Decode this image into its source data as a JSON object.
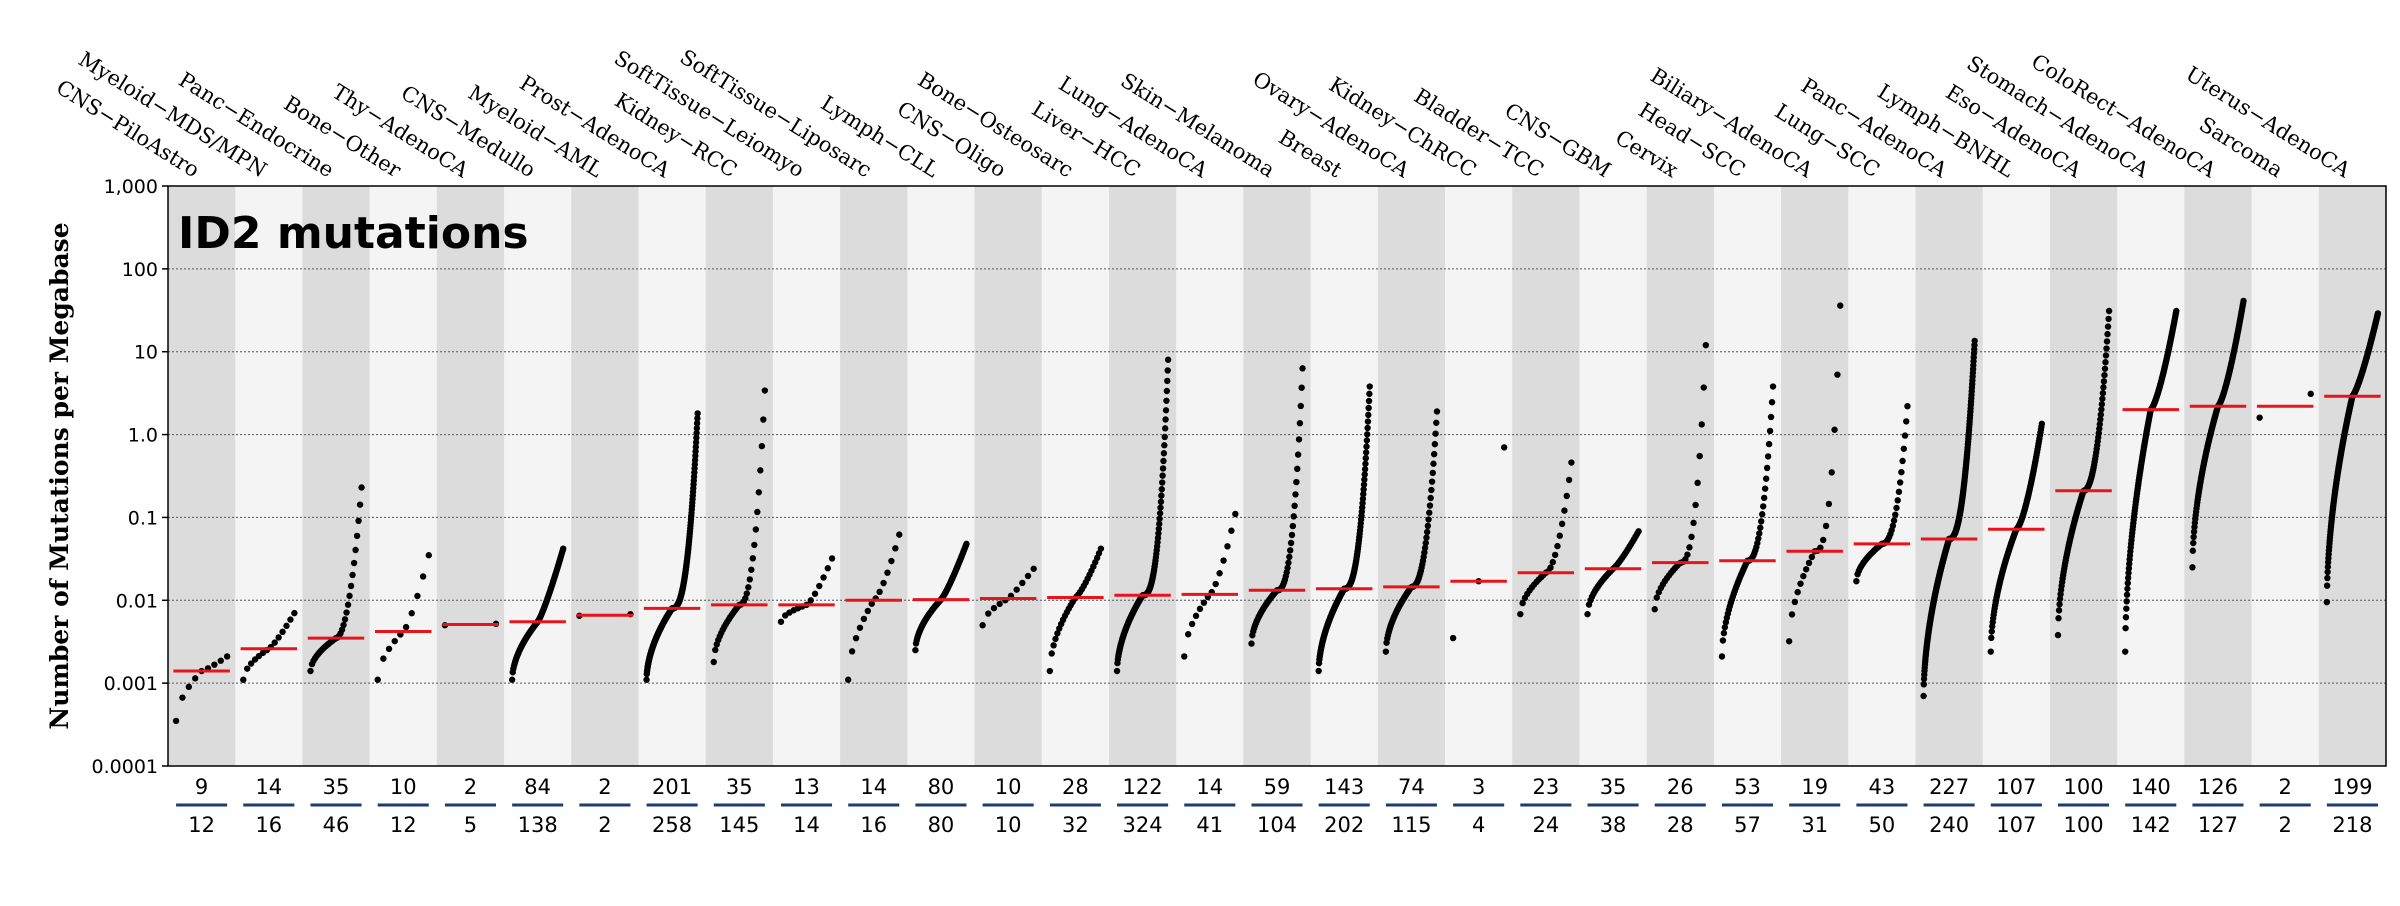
{
  "chart_data": {
    "type": "scatter",
    "title": "ID2 mutations",
    "ylabel": "Number of Mutations per Megabase",
    "yscale": "log",
    "ylim": [
      0.0001,
      1000
    ],
    "yticks": [
      {
        "value": 1000,
        "label": "1,000"
      },
      {
        "value": 100,
        "label": "100"
      },
      {
        "value": 10,
        "label": "10"
      },
      {
        "value": 1,
        "label": "1.0"
      },
      {
        "value": 0.1,
        "label": "0.1"
      },
      {
        "value": 0.01,
        "label": "0.01"
      },
      {
        "value": 0.001,
        "label": "0.001"
      },
      {
        "value": 0.0001,
        "label": "0.0001"
      }
    ],
    "colors": {
      "point": "#000000",
      "median": "#e8141c",
      "band_dark": "#dcdcdc",
      "band_light": "#f4f4f4",
      "count_line": "#1f3b73",
      "grid": "#555555"
    },
    "categories": [
      {
        "name": "CNS−PiloAstro",
        "mutated": 9,
        "total": 12,
        "median": 0.0014,
        "lo": 0.00035,
        "hi": 0.0021,
        "skew": 1.2
      },
      {
        "name": "Myeloid−MDS/MPN",
        "mutated": 14,
        "total": 16,
        "median": 0.0026,
        "lo": 0.0011,
        "hi": 0.007,
        "skew": 1.2
      },
      {
        "name": "Panc−Endocrine",
        "mutated": 35,
        "total": 46,
        "median": 0.0035,
        "lo": 0.0014,
        "hi": 0.23,
        "skew": 2.0
      },
      {
        "name": "Bone−Other",
        "mutated": 10,
        "total": 12,
        "median": 0.0042,
        "lo": 0.0011,
        "hi": 0.035,
        "skew": 1.3
      },
      {
        "name": "Thy−AdenoCA",
        "mutated": 2,
        "total": 5,
        "median": 0.0051,
        "lo": 0.005,
        "hi": 0.0052,
        "skew": 1.0
      },
      {
        "name": "CNS−Medullo",
        "mutated": 84,
        "total": 138,
        "median": 0.0055,
        "lo": 0.0011,
        "hi": 0.042,
        "skew": 1.2
      },
      {
        "name": "Myeloid−AML",
        "mutated": 2,
        "total": 2,
        "median": 0.0066,
        "lo": 0.0065,
        "hi": 0.0068,
        "skew": 1.0
      },
      {
        "name": "Prost−AdenoCA",
        "mutated": 201,
        "total": 258,
        "median": 0.008,
        "lo": 0.0011,
        "hi": 1.8,
        "skew": 2.6
      },
      {
        "name": "Kidney−RCC",
        "mutated": 35,
        "total": 145,
        "median": 0.0088,
        "lo": 0.0018,
        "hi": 3.4,
        "skew": 2.4
      },
      {
        "name": "SoftTissue−Leiomyo",
        "mutated": 13,
        "total": 14,
        "median": 0.0088,
        "lo": 0.0055,
        "hi": 0.032,
        "skew": 1.3
      },
      {
        "name": "SoftTissue−Liposarc",
        "mutated": 14,
        "total": 16,
        "median": 0.01,
        "lo": 0.0011,
        "hi": 0.062,
        "skew": 1.4
      },
      {
        "name": "Lymph−CLL",
        "mutated": 80,
        "total": 80,
        "median": 0.0102,
        "lo": 0.0025,
        "hi": 0.048,
        "skew": 1.2
      },
      {
        "name": "CNS−Oligo",
        "mutated": 10,
        "total": 10,
        "median": 0.0105,
        "lo": 0.005,
        "hi": 0.024,
        "skew": 1.1
      },
      {
        "name": "Bone−Osteosarc",
        "mutated": 28,
        "total": 32,
        "median": 0.0108,
        "lo": 0.0014,
        "hi": 0.042,
        "skew": 1.3
      },
      {
        "name": "Liver−HCC",
        "mutated": 122,
        "total": 324,
        "median": 0.0115,
        "lo": 0.0014,
        "hi": 8.0,
        "skew": 2.8
      },
      {
        "name": "Lung−AdenoCA",
        "mutated": 14,
        "total": 41,
        "median": 0.0118,
        "lo": 0.0021,
        "hi": 0.11,
        "skew": 1.4
      },
      {
        "name": "Skin−Melanoma",
        "mutated": 59,
        "total": 104,
        "median": 0.0132,
        "lo": 0.003,
        "hi": 6.3,
        "skew": 2.6
      },
      {
        "name": "Breast",
        "mutated": 143,
        "total": 202,
        "median": 0.0138,
        "lo": 0.0014,
        "hi": 3.8,
        "skew": 2.6
      },
      {
        "name": "Ovary−AdenoCA",
        "mutated": 74,
        "total": 115,
        "median": 0.0145,
        "lo": 0.0024,
        "hi": 1.9,
        "skew": 2.4
      },
      {
        "name": "Kidney−ChRCC",
        "mutated": 3,
        "total": 4,
        "median": 0.017,
        "lo": 0.0035,
        "hi": 0.7,
        "skew": 1.0
      },
      {
        "name": "Bladder−TCC",
        "mutated": 23,
        "total": 24,
        "median": 0.0215,
        "lo": 0.0068,
        "hi": 0.46,
        "skew": 1.8
      },
      {
        "name": "CNS−GBM",
        "mutated": 35,
        "total": 38,
        "median": 0.024,
        "lo": 0.0068,
        "hi": 0.068,
        "skew": 1.2
      },
      {
        "name": "Cervix",
        "mutated": 26,
        "total": 28,
        "median": 0.0285,
        "lo": 0.0078,
        "hi": 12.0,
        "skew": 2.6
      },
      {
        "name": "Head−SCC",
        "mutated": 53,
        "total": 57,
        "median": 0.03,
        "lo": 0.0021,
        "hi": 3.8,
        "skew": 2.4
      },
      {
        "name": "Biliary−AdenoCA",
        "mutated": 19,
        "total": 31,
        "median": 0.039,
        "lo": 0.0032,
        "hi": 36.0,
        "skew": 2.8
      },
      {
        "name": "Lung−SCC",
        "mutated": 43,
        "total": 50,
        "median": 0.048,
        "lo": 0.017,
        "hi": 2.2,
        "skew": 2.4
      },
      {
        "name": "Panc−AdenoCA",
        "mutated": 227,
        "total": 240,
        "median": 0.055,
        "lo": 0.0007,
        "hi": 13.5,
        "skew": 2.4
      },
      {
        "name": "Lymph−BNHL",
        "mutated": 107,
        "total": 107,
        "median": 0.072,
        "lo": 0.0024,
        "hi": 1.35,
        "skew": 1.5
      },
      {
        "name": "Eso−AdenoCA",
        "mutated": 100,
        "total": 100,
        "median": 0.21,
        "lo": 0.0038,
        "hi": 31.0,
        "skew": 2.2
      },
      {
        "name": "Stomach−AdenoCA",
        "mutated": 140,
        "total": 142,
        "median": 2.0,
        "lo": 0.0024,
        "hi": 31.0,
        "skew": 1.4
      },
      {
        "name": "ColoRect−AdenoCA",
        "mutated": 126,
        "total": 127,
        "median": 2.2,
        "lo": 0.025,
        "hi": 41.0,
        "skew": 1.4
      },
      {
        "name": "Sarcoma",
        "mutated": 2,
        "total": 2,
        "median": 2.2,
        "lo": 1.6,
        "hi": 3.1,
        "skew": 1.0
      },
      {
        "name": "Uterus−AdenoCA",
        "mutated": 199,
        "total": 218,
        "median": 2.9,
        "lo": 0.0095,
        "hi": 29.0,
        "skew": 1.3
      }
    ]
  }
}
